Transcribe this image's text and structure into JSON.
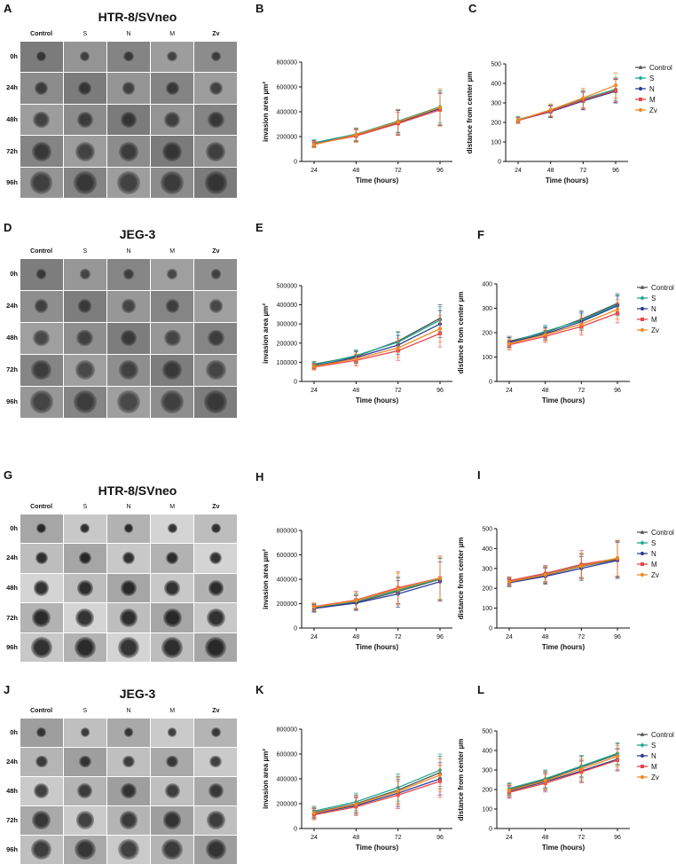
{
  "figure": {
    "image_columns": [
      "Control",
      "S",
      "N",
      "M",
      "Zv"
    ],
    "image_rows": [
      "0h",
      "24h",
      "48h",
      "72h",
      "96h"
    ],
    "panels": [
      {
        "label": "A",
        "title": "HTR-8/SVneo",
        "tile_color": "#8c8c8c",
        "sphere_color": "#3b3b3b"
      },
      {
        "label": "D",
        "title": "JEG-3",
        "tile_color": "#8e8e8e",
        "sphere_color": "#404040"
      },
      {
        "label": "G",
        "title": "HTR-8/SVneo",
        "tile_color": "#bdbdbd",
        "sphere_color": "#2e2e2e"
      },
      {
        "label": "J",
        "title": "JEG-3",
        "tile_color": "#b4b4b4",
        "sphere_color": "#3a3a3a"
      }
    ]
  },
  "series_colors": {
    "Control": "#555555",
    "S": "#1aa88c",
    "N": "#2b3f96",
    "M": "#e8454a",
    "Zv": "#ef8a22"
  },
  "chart_data": [
    {
      "label": "B",
      "type": "line",
      "xlabel": "Time (hours)",
      "ylabel": "invasion area µm²",
      "x": [
        24,
        48,
        72,
        96
      ],
      "ylim": [
        0,
        800000
      ],
      "yticks": [
        0,
        200000,
        400000,
        600000,
        800000
      ],
      "series": [
        {
          "name": "Control",
          "values": [
            145000,
            210000,
            310000,
            430000
          ],
          "errors": [
            25000,
            50000,
            100000,
            140000
          ]
        },
        {
          "name": "S",
          "values": [
            150000,
            220000,
            325000,
            440000
          ],
          "errors": [
            25000,
            50000,
            90000,
            130000
          ]
        },
        {
          "name": "N",
          "values": [
            140000,
            215000,
            320000,
            425000
          ],
          "errors": [
            25000,
            50000,
            90000,
            130000
          ]
        },
        {
          "name": "M",
          "values": [
            140000,
            205000,
            305000,
            415000
          ],
          "errors": [
            25000,
            50000,
            90000,
            130000
          ]
        },
        {
          "name": "Zv",
          "values": [
            135000,
            215000,
            320000,
            435000
          ],
          "errors": [
            25000,
            50000,
            100000,
            150000
          ]
        }
      ]
    },
    {
      "label": "C",
      "type": "line",
      "xlabel": "Time (hours)",
      "ylabel": "distance from center µm",
      "x": [
        24,
        48,
        72,
        96
      ],
      "ylim": [
        0,
        500
      ],
      "yticks": [
        0,
        100,
        200,
        300,
        400,
        500
      ],
      "series": [
        {
          "name": "Control",
          "values": [
            215,
            255,
            310,
            360
          ],
          "errors": [
            15,
            30,
            45,
            60
          ]
        },
        {
          "name": "S",
          "values": [
            215,
            260,
            320,
            370
          ],
          "errors": [
            15,
            30,
            45,
            60
          ]
        },
        {
          "name": "N",
          "values": [
            210,
            255,
            310,
            360
          ],
          "errors": [
            15,
            30,
            45,
            60
          ]
        },
        {
          "name": "M",
          "values": [
            210,
            258,
            315,
            365
          ],
          "errors": [
            15,
            30,
            45,
            60
          ]
        },
        {
          "name": "Zv",
          "values": [
            212,
            265,
            325,
            390
          ],
          "errors": [
            15,
            30,
            50,
            65
          ]
        }
      ]
    },
    {
      "label": "E",
      "type": "line",
      "xlabel": "Time (hours)",
      "ylabel": "invasion area µm²",
      "x": [
        24,
        48,
        72,
        96
      ],
      "ylim": [
        0,
        500000
      ],
      "yticks": [
        0,
        100000,
        200000,
        300000,
        400000,
        500000
      ],
      "series": [
        {
          "name": "Control",
          "values": [
            90000,
            130000,
            210000,
            330000
          ],
          "errors": [
            15000,
            30000,
            50000,
            70000
          ]
        },
        {
          "name": "S",
          "values": [
            85000,
            135000,
            205000,
            320000
          ],
          "errors": [
            15000,
            30000,
            50000,
            70000
          ]
        },
        {
          "name": "N",
          "values": [
            80000,
            125000,
            190000,
            300000
          ],
          "errors": [
            15000,
            30000,
            50000,
            70000
          ]
        },
        {
          "name": "M",
          "values": [
            75000,
            110000,
            160000,
            250000
          ],
          "errors": [
            15000,
            30000,
            50000,
            70000
          ]
        },
        {
          "name": "Zv",
          "values": [
            78000,
            118000,
            175000,
            275000
          ],
          "errors": [
            15000,
            30000,
            50000,
            70000
          ]
        }
      ]
    },
    {
      "label": "F",
      "type": "line",
      "xlabel": "Time (hours)",
      "ylabel": "distance from center µm",
      "x": [
        24,
        48,
        72,
        96
      ],
      "ylim": [
        0,
        400
      ],
      "yticks": [
        0,
        100,
        200,
        300,
        400
      ],
      "series": [
        {
          "name": "Control",
          "values": [
            165,
            200,
            255,
            320
          ],
          "errors": [
            20,
            25,
            35,
            40
          ]
        },
        {
          "name": "S",
          "values": [
            160,
            205,
            250,
            315
          ],
          "errors": [
            20,
            25,
            35,
            40
          ]
        },
        {
          "name": "N",
          "values": [
            160,
            195,
            245,
            310
          ],
          "errors": [
            20,
            25,
            35,
            40
          ]
        },
        {
          "name": "M",
          "values": [
            150,
            185,
            225,
            280
          ],
          "errors": [
            20,
            25,
            35,
            40
          ]
        },
        {
          "name": "Zv",
          "values": [
            155,
            192,
            235,
            295
          ],
          "errors": [
            20,
            25,
            35,
            40
          ]
        }
      ]
    },
    {
      "label": "H",
      "type": "line",
      "xlabel": "Time (hours)",
      "ylabel": "invasion area µm²",
      "x": [
        24,
        48,
        72,
        96
      ],
      "ylim": [
        0,
        800000
      ],
      "yticks": [
        0,
        200000,
        400000,
        600000,
        800000
      ],
      "series": [
        {
          "name": "Control",
          "values": [
            165000,
            210000,
            300000,
            400000
          ],
          "errors": [
            30000,
            60000,
            110000,
            170000
          ]
        },
        {
          "name": "S",
          "values": [
            170000,
            220000,
            310000,
            405000
          ],
          "errors": [
            30000,
            60000,
            110000,
            170000
          ]
        },
        {
          "name": "N",
          "values": [
            160000,
            205000,
            280000,
            380000
          ],
          "errors": [
            30000,
            60000,
            110000,
            160000
          ]
        },
        {
          "name": "M",
          "values": [
            175000,
            230000,
            330000,
            410000
          ],
          "errors": [
            30000,
            70000,
            130000,
            180000
          ]
        },
        {
          "name": "Zv",
          "values": [
            172000,
            225000,
            320000,
            410000
          ],
          "errors": [
            30000,
            70000,
            130000,
            180000
          ]
        }
      ]
    },
    {
      "label": "I",
      "type": "line",
      "xlabel": "Time (hours)",
      "ylabel": "distance from center µm",
      "x": [
        24,
        48,
        72,
        96
      ],
      "ylim": [
        0,
        500
      ],
      "yticks": [
        0,
        100,
        200,
        300,
        400,
        500
      ],
      "series": [
        {
          "name": "Control",
          "values": [
            230,
            265,
            310,
            345
          ],
          "errors": [
            20,
            40,
            60,
            90
          ]
        },
        {
          "name": "S",
          "values": [
            235,
            270,
            315,
            350
          ],
          "errors": [
            20,
            40,
            60,
            90
          ]
        },
        {
          "name": "N",
          "values": [
            228,
            260,
            300,
            340
          ],
          "errors": [
            20,
            40,
            60,
            90
          ]
        },
        {
          "name": "M",
          "values": [
            238,
            275,
            320,
            350
          ],
          "errors": [
            20,
            40,
            70,
            90
          ]
        },
        {
          "name": "Zv",
          "values": [
            232,
            268,
            312,
            352
          ],
          "errors": [
            20,
            40,
            65,
            90
          ]
        }
      ]
    },
    {
      "label": "K",
      "type": "line",
      "xlabel": "Time (hours)",
      "ylabel": "invasion area µm²",
      "x": [
        24,
        48,
        72,
        96
      ],
      "ylim": [
        0,
        800000
      ],
      "yticks": [
        0,
        200000,
        400000,
        600000,
        800000
      ],
      "series": [
        {
          "name": "Control",
          "values": [
            130000,
            200000,
            310000,
            450000
          ],
          "errors": [
            40000,
            70000,
            110000,
            130000
          ]
        },
        {
          "name": "S",
          "values": [
            140000,
            215000,
            330000,
            470000
          ],
          "errors": [
            40000,
            70000,
            110000,
            130000
          ]
        },
        {
          "name": "N",
          "values": [
            120000,
            185000,
            285000,
            400000
          ],
          "errors": [
            40000,
            70000,
            110000,
            130000
          ]
        },
        {
          "name": "M",
          "values": [
            110000,
            175000,
            270000,
            380000
          ],
          "errors": [
            40000,
            70000,
            110000,
            130000
          ]
        },
        {
          "name": "Zv",
          "values": [
            125000,
            195000,
            300000,
            430000
          ],
          "errors": [
            40000,
            70000,
            110000,
            130000
          ]
        }
      ]
    },
    {
      "label": "L",
      "type": "line",
      "xlabel": "Time (hours)",
      "ylabel": "distance from center µm",
      "x": [
        24,
        48,
        72,
        96
      ],
      "ylim": [
        0,
        500
      ],
      "yticks": [
        0,
        100,
        200,
        300,
        400,
        500
      ],
      "series": [
        {
          "name": "Control",
          "values": [
            200,
            250,
            315,
            380
          ],
          "errors": [
            30,
            45,
            55,
            55
          ]
        },
        {
          "name": "S",
          "values": [
            205,
            255,
            320,
            385
          ],
          "errors": [
            30,
            45,
            55,
            55
          ]
        },
        {
          "name": "N",
          "values": [
            190,
            240,
            295,
            355
          ],
          "errors": [
            30,
            45,
            55,
            55
          ]
        },
        {
          "name": "M",
          "values": [
            185,
            232,
            290,
            350
          ],
          "errors": [
            30,
            45,
            55,
            55
          ]
        },
        {
          "name": "Zv",
          "values": [
            195,
            245,
            305,
            370
          ],
          "errors": [
            30,
            45,
            55,
            55
          ]
        }
      ]
    }
  ]
}
